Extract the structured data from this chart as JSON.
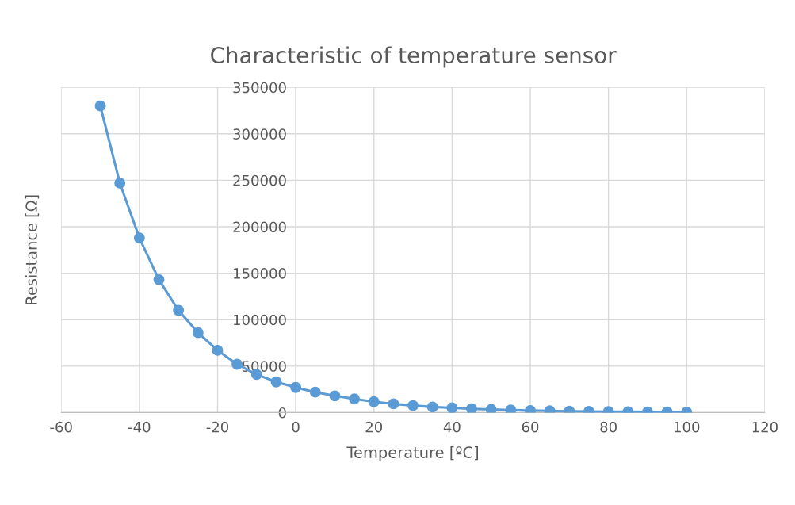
{
  "chart_data": {
    "type": "line",
    "title": "Characteristic of temperature sensor",
    "xlabel": "Temperature [ºC]",
    "ylabel": "Resistance [Ω]",
    "x": [
      -50,
      -45,
      -40,
      -35,
      -30,
      -25,
      -20,
      -15,
      -10,
      -5,
      0,
      5,
      10,
      15,
      20,
      25,
      30,
      35,
      40,
      45,
      50,
      55,
      60,
      65,
      70,
      75,
      80,
      85,
      90,
      95,
      100
    ],
    "series": [
      {
        "color": "#5b9bd5",
        "values": [
          330000,
          247000,
          188000,
          143000,
          110000,
          86000,
          67000,
          52000,
          41000,
          33000,
          27000,
          22000,
          18000,
          14700,
          11700,
          9400,
          7500,
          6000,
          5000,
          4000,
          3300,
          2700,
          2200,
          1800,
          1500,
          1200,
          1000,
          900,
          700,
          600,
          500
        ]
      }
    ],
    "xlim": [
      -60,
      120
    ],
    "xticks": [
      -60,
      -40,
      -20,
      0,
      20,
      40,
      60,
      80,
      100,
      120
    ],
    "ylim": [
      0,
      350000
    ],
    "yticks": [
      0,
      50000,
      100000,
      150000,
      200000,
      250000,
      300000,
      350000
    ],
    "grid": true,
    "legend": false,
    "marker": "circle",
    "line_style": "solid"
  }
}
